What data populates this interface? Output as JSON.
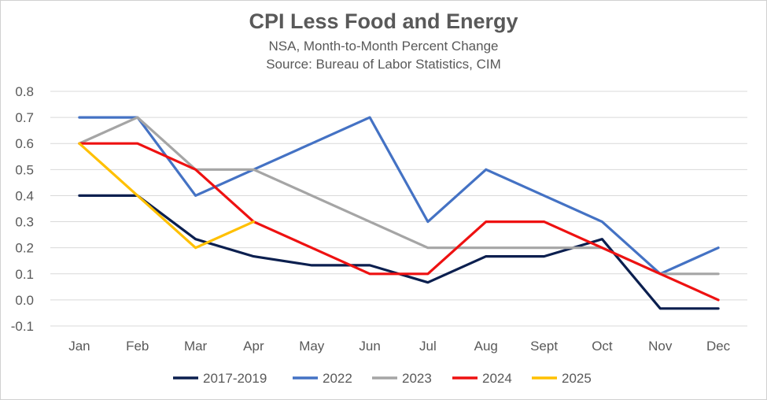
{
  "chart_data": {
    "type": "line",
    "title": "CPI Less Food and Energy",
    "subtitle_lines": [
      "NSA, Month-to-Month Percent Change",
      "Source: Bureau of Labor Statistics, CIM"
    ],
    "xlabel": "",
    "ylabel": "",
    "categories": [
      "Jan",
      "Feb",
      "Mar",
      "Apr",
      "May",
      "Jun",
      "Jul",
      "Aug",
      "Sept",
      "Oct",
      "Nov",
      "Dec"
    ],
    "ylim": [
      -0.1,
      0.8
    ],
    "yticks": [
      "0.8",
      "0.7",
      "0.6",
      "0.5",
      "0.4",
      "0.3",
      "0.2",
      "0.1",
      "0.0",
      "-0.1"
    ],
    "grid": "horizontal",
    "legend_position": "bottom",
    "series": [
      {
        "name": "2017-2019",
        "color": "#0b1f4f",
        "values": [
          0.4,
          0.4,
          0.233,
          0.167,
          0.133,
          0.133,
          0.067,
          0.167,
          0.167,
          0.233,
          -0.033,
          -0.033
        ]
      },
      {
        "name": "2022",
        "color": "#4472c4",
        "values": [
          0.7,
          0.7,
          0.4,
          0.5,
          0.6,
          0.7,
          0.3,
          0.5,
          0.4,
          0.3,
          0.1,
          0.2
        ]
      },
      {
        "name": "2023",
        "color": "#a5a5a5",
        "values": [
          0.6,
          0.7,
          0.5,
          0.5,
          0.4,
          0.3,
          0.2,
          0.2,
          0.2,
          0.2,
          0.1,
          0.1
        ]
      },
      {
        "name": "2024",
        "color": "#ee1111",
        "values": [
          0.6,
          0.6,
          0.5,
          0.3,
          0.2,
          0.1,
          0.1,
          0.3,
          0.3,
          0.2,
          0.1,
          0.0
        ]
      },
      {
        "name": "2025",
        "color": "#ffc000",
        "values": [
          0.6,
          0.4,
          0.2,
          0.3,
          null,
          null,
          null,
          null,
          null,
          null,
          null,
          null
        ]
      }
    ]
  }
}
